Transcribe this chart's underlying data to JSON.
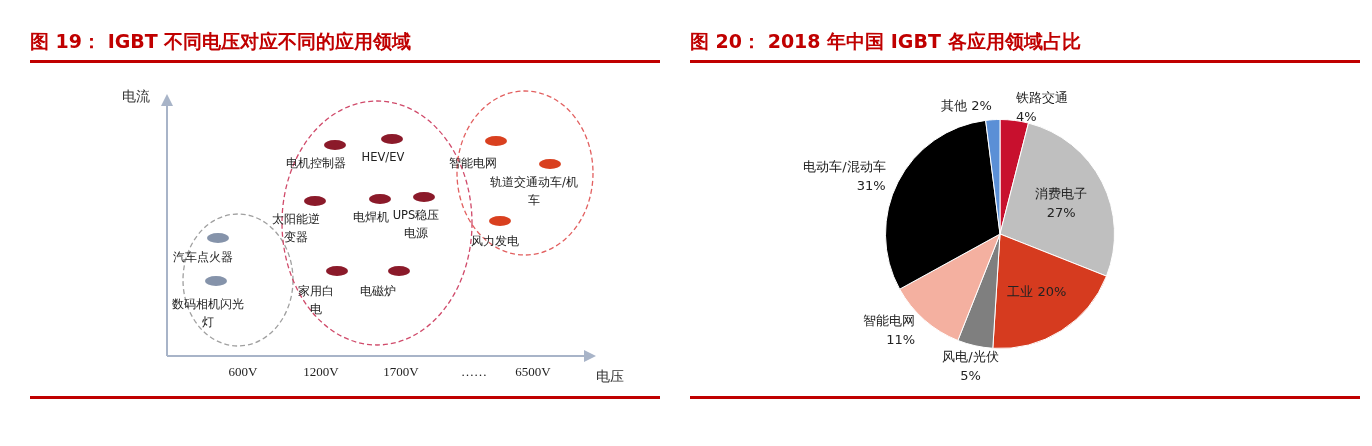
{
  "chart_data": [
    {
      "type": "other",
      "title": "图 19： IGBT 不同电压对应不同的应用领域",
      "xlabel": "电压",
      "ylabel": "电流",
      "categories": [
        "600V",
        "1200V",
        "1700V",
        "……",
        "6500V"
      ],
      "annotations": [
        "汽车点火器",
        "数码相机闪光灯",
        "电机控制器",
        "HEV/EV",
        "太阳能逆变器",
        "电焊机",
        "UPS稳压电源",
        "家用白电",
        "电磁炉",
        "智能电网",
        "轨道交通动车/机车",
        "风力发电"
      ]
    },
    {
      "type": "pie",
      "title": "图 20： 2018 年中国 IGBT 各应用领域占比",
      "categories": [
        "铁路交通",
        "消费电子",
        "工业",
        "风电/光伏",
        "智能电网",
        "电动车/混动车",
        "其他"
      ],
      "value_labels": [
        "4%",
        "27%",
        "20%",
        "5%",
        "11%",
        "31%",
        "2%"
      ],
      "values": [
        4,
        27,
        20,
        5,
        11,
        31,
        2
      ],
      "colors": [
        "#c8102e",
        "#bfbfbf",
        "#d63b1f",
        "#7f7f7f",
        "#f4b0a0",
        "#000000",
        "#5b8fd6"
      ],
      "legend": false
    }
  ]
}
